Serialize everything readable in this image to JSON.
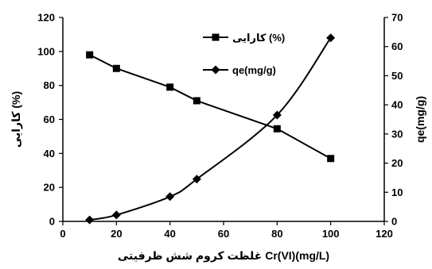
{
  "chart_data": {
    "type": "line",
    "xlabel": "غلظت کروم شش ظرفیتی Cr(VI)(mg/L)",
    "ylabel_left": "کارایی (%)",
    "ylabel_right": "qe(mg/g)",
    "x_ticks": [
      "0",
      "20",
      "40",
      "60",
      "80",
      "100",
      "120"
    ],
    "y_left_ticks": [
      "0",
      "20",
      "40",
      "60",
      "80",
      "100",
      "120"
    ],
    "y_right_ticks": [
      "0",
      "10",
      "20",
      "30",
      "40",
      "50",
      "60",
      "70"
    ],
    "xlim": [
      0,
      120
    ],
    "ylim_left": [
      0,
      120
    ],
    "ylim_right": [
      0,
      70
    ],
    "grid": false,
    "legend_position": "top-center",
    "series": [
      {
        "name": "کارایی (%)",
        "axis": "left",
        "marker": "square",
        "color": "#000000",
        "x": [
          10,
          20,
          40,
          50,
          80,
          100
        ],
        "y": [
          98,
          90,
          79,
          71,
          54.5,
          37
        ]
      },
      {
        "name": "qe(mg/g)",
        "axis": "right",
        "marker": "diamond",
        "color": "#000000",
        "x": [
          10,
          20,
          40,
          50,
          80,
          100
        ],
        "y": [
          0.5,
          2.2,
          8.5,
          14.5,
          36.5,
          63
        ]
      }
    ]
  }
}
